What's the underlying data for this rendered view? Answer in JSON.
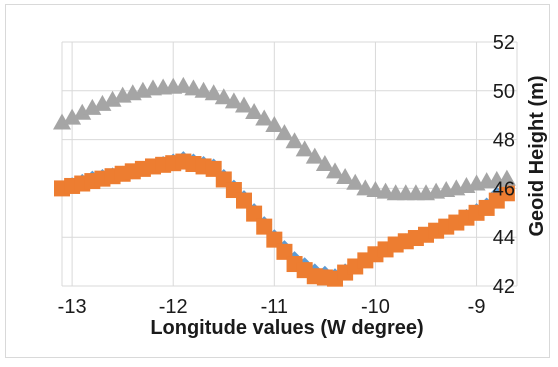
{
  "chart_data": {
    "type": "scatter",
    "xlabel": "Longitude values (W degree)",
    "ylabel": "Geoid Height (m)",
    "xlim": [
      -13.1,
      -8.6
    ],
    "ylim": [
      42,
      52
    ],
    "xticks": [
      "-13",
      "-12",
      "-11",
      "-10",
      "-9"
    ],
    "yticks": [
      "42",
      "44",
      "46",
      "48",
      "50",
      "52"
    ],
    "xtick_values": [
      -13,
      -12,
      -11,
      -10,
      -9
    ],
    "ytick_values": [
      42,
      44,
      46,
      48,
      50,
      52
    ],
    "grid": "on",
    "colors": {
      "series1": "#5b9bd5",
      "series2": "#ed7d31",
      "series3": "#a5a5a5",
      "grid": "#d9d9d9"
    },
    "series": [
      {
        "marker": "diamond",
        "color": "#5b9bd5",
        "points": [
          [
            -13.1,
            46.0
          ],
          [
            -12.8,
            46.4
          ],
          [
            -12.5,
            46.6
          ],
          [
            -12.2,
            46.9
          ],
          [
            -11.9,
            47.2
          ],
          [
            -11.6,
            46.9
          ],
          [
            -11.3,
            45.6
          ],
          [
            -11.0,
            44.0
          ],
          [
            -10.8,
            43.1
          ],
          [
            -10.6,
            42.6
          ],
          [
            -10.4,
            42.4
          ],
          [
            -10.2,
            42.8
          ],
          [
            -10.0,
            43.3
          ],
          [
            -9.8,
            43.7
          ],
          [
            -9.5,
            44.1
          ],
          [
            -9.2,
            44.6
          ],
          [
            -8.9,
            45.3
          ],
          [
            -8.7,
            46.2
          ]
        ]
      },
      {
        "marker": "square",
        "color": "#ed7d31",
        "points": [
          [
            -13.1,
            46.0
          ],
          [
            -12.8,
            46.3
          ],
          [
            -12.5,
            46.6
          ],
          [
            -12.2,
            46.9
          ],
          [
            -11.9,
            47.1
          ],
          [
            -11.6,
            46.8
          ],
          [
            -11.3,
            45.5
          ],
          [
            -11.0,
            43.9
          ],
          [
            -10.8,
            42.9
          ],
          [
            -10.6,
            42.4
          ],
          [
            -10.4,
            42.3
          ],
          [
            -10.2,
            42.8
          ],
          [
            -10.0,
            43.3
          ],
          [
            -9.8,
            43.7
          ],
          [
            -9.5,
            44.1
          ],
          [
            -9.2,
            44.6
          ],
          [
            -8.9,
            45.2
          ],
          [
            -8.7,
            45.8
          ]
        ]
      },
      {
        "marker": "triangle",
        "color": "#a5a5a5",
        "points": [
          [
            -13.1,
            48.7
          ],
          [
            -12.8,
            49.3
          ],
          [
            -12.5,
            49.8
          ],
          [
            -12.2,
            50.1
          ],
          [
            -11.9,
            50.2
          ],
          [
            -11.6,
            49.9
          ],
          [
            -11.3,
            49.4
          ],
          [
            -11.0,
            48.6
          ],
          [
            -10.7,
            47.6
          ],
          [
            -10.4,
            46.7
          ],
          [
            -10.1,
            46.0
          ],
          [
            -9.8,
            45.8
          ],
          [
            -9.5,
            45.8
          ],
          [
            -9.2,
            46.0
          ],
          [
            -8.9,
            46.3
          ],
          [
            -8.7,
            46.4
          ]
        ]
      }
    ]
  }
}
